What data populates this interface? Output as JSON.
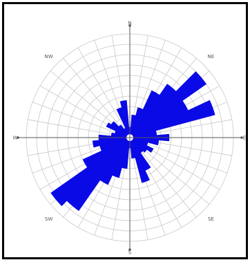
{
  "chart_data": {
    "type": "rose",
    "sector_width_deg": 10,
    "direction_labels": [
      "N",
      "NE",
      "E",
      "SE",
      "S",
      "SW",
      "W",
      "NW"
    ],
    "rings": 10,
    "spokes_every_deg": 10,
    "colors": {
      "bar": "#0a0ae6",
      "grid": "#c8c8c8",
      "axis": "#555555"
    },
    "sectors": [
      {
        "angle": 0,
        "r": 0.1
      },
      {
        "angle": 10,
        "r": 0.22
      },
      {
        "angle": 20,
        "r": 0.3
      },
      {
        "angle": 30,
        "r": 0.5
      },
      {
        "angle": 40,
        "r": 0.63
      },
      {
        "angle": 50,
        "r": 0.9
      },
      {
        "angle": 60,
        "r": 0.62
      },
      {
        "angle": 70,
        "r": 0.85
      },
      {
        "angle": 80,
        "r": 0.26
      },
      {
        "angle": 90,
        "r": 0.38
      },
      {
        "angle": 100,
        "r": 0.28
      },
      {
        "angle": 110,
        "r": 0.18
      },
      {
        "angle": 120,
        "r": 0.25
      },
      {
        "angle": 130,
        "r": 0.2
      },
      {
        "angle": 140,
        "r": 0.18
      },
      {
        "angle": 150,
        "r": 0.35
      },
      {
        "angle": 160,
        "r": 0.45
      },
      {
        "angle": 170,
        "r": 0.2
      },
      {
        "angle": 180,
        "r": 0.1
      },
      {
        "angle": 190,
        "r": 0.3
      },
      {
        "angle": 200,
        "r": 0.4
      },
      {
        "angle": 210,
        "r": 0.5
      },
      {
        "angle": 220,
        "r": 0.86
      },
      {
        "angle": 230,
        "r": 0.93
      },
      {
        "angle": 240,
        "r": 0.5
      },
      {
        "angle": 250,
        "r": 0.3
      },
      {
        "angle": 260,
        "r": 0.36
      },
      {
        "angle": 270,
        "r": 0.3
      },
      {
        "angle": 280,
        "r": 0.18
      },
      {
        "angle": 290,
        "r": 0.15
      },
      {
        "angle": 300,
        "r": 0.25
      },
      {
        "angle": 310,
        "r": 0.22
      },
      {
        "angle": 320,
        "r": 0.15
      },
      {
        "angle": 330,
        "r": 0.1
      },
      {
        "angle": 340,
        "r": 0.3
      },
      {
        "angle": 350,
        "r": 0.36
      }
    ]
  }
}
